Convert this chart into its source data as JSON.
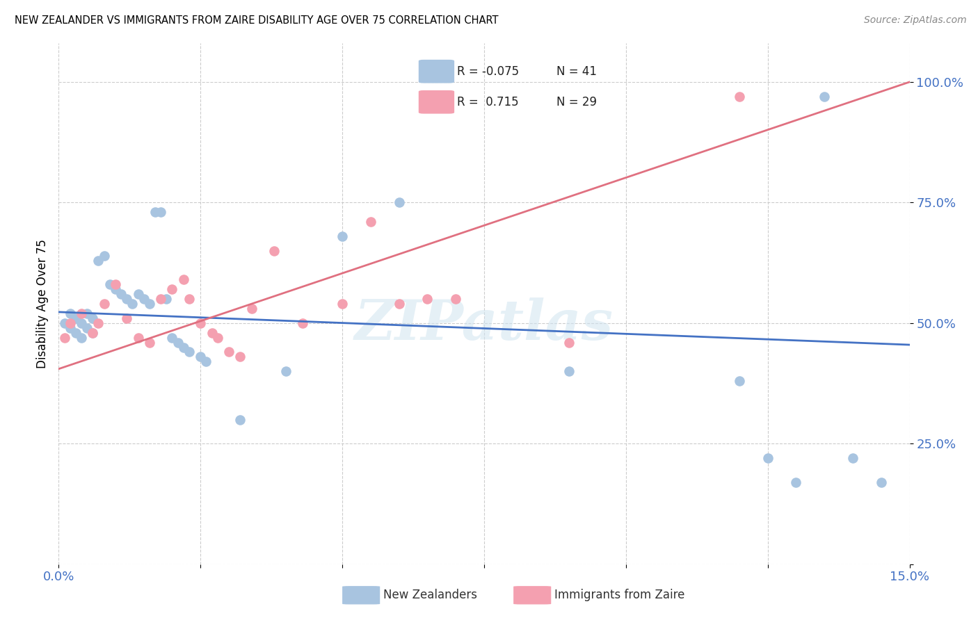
{
  "title": "NEW ZEALANDER VS IMMIGRANTS FROM ZAIRE DISABILITY AGE OVER 75 CORRELATION CHART",
  "source": "Source: ZipAtlas.com",
  "ylabel": "Disability Age Over 75",
  "xmin": 0.0,
  "xmax": 0.15,
  "ymin": 0.0,
  "ymax": 1.08,
  "ytick_values": [
    0.0,
    0.25,
    0.5,
    0.75,
    1.0
  ],
  "ytick_labels": [
    "",
    "25.0%",
    "50.0%",
    "75.0%",
    "100.0%"
  ],
  "xtick_values": [
    0.0,
    0.025,
    0.05,
    0.075,
    0.1,
    0.125,
    0.15
  ],
  "xtick_labels": [
    "0.0%",
    "",
    "",
    "",
    "",
    "",
    "15.0%"
  ],
  "blue_R": -0.075,
  "blue_N": 41,
  "pink_R": 0.715,
  "pink_N": 29,
  "blue_color": "#a8c4e0",
  "pink_color": "#f4a0b0",
  "blue_line_color": "#4472c4",
  "pink_line_color": "#e07080",
  "watermark": "ZIPatlas",
  "legend_label_blue": "New Zealanders",
  "legend_label_pink": "Immigrants from Zaire",
  "blue_x": [
    0.001,
    0.002,
    0.002,
    0.003,
    0.003,
    0.004,
    0.004,
    0.005,
    0.005,
    0.006,
    0.006,
    0.007,
    0.008,
    0.009,
    0.01,
    0.011,
    0.012,
    0.013,
    0.014,
    0.015,
    0.016,
    0.017,
    0.018,
    0.019,
    0.02,
    0.021,
    0.022,
    0.023,
    0.025,
    0.026,
    0.032,
    0.04,
    0.05,
    0.06,
    0.09,
    0.12,
    0.125,
    0.13,
    0.135,
    0.14,
    0.145
  ],
  "blue_y": [
    0.5,
    0.52,
    0.49,
    0.51,
    0.48,
    0.5,
    0.47,
    0.52,
    0.49,
    0.51,
    0.48,
    0.63,
    0.64,
    0.58,
    0.57,
    0.56,
    0.55,
    0.54,
    0.56,
    0.55,
    0.54,
    0.73,
    0.73,
    0.55,
    0.47,
    0.46,
    0.45,
    0.44,
    0.43,
    0.42,
    0.3,
    0.4,
    0.68,
    0.75,
    0.4,
    0.38,
    0.22,
    0.17,
    0.97,
    0.22,
    0.17
  ],
  "pink_x": [
    0.001,
    0.002,
    0.004,
    0.006,
    0.007,
    0.008,
    0.01,
    0.012,
    0.014,
    0.016,
    0.018,
    0.02,
    0.022,
    0.023,
    0.025,
    0.027,
    0.028,
    0.03,
    0.032,
    0.034,
    0.038,
    0.043,
    0.05,
    0.055,
    0.06,
    0.065,
    0.07,
    0.09,
    0.12
  ],
  "pink_y": [
    0.47,
    0.5,
    0.52,
    0.48,
    0.5,
    0.54,
    0.58,
    0.51,
    0.47,
    0.46,
    0.55,
    0.57,
    0.59,
    0.55,
    0.5,
    0.48,
    0.47,
    0.44,
    0.43,
    0.53,
    0.65,
    0.5,
    0.54,
    0.71,
    0.54,
    0.55,
    0.55,
    0.46,
    0.97
  ],
  "blue_line_x": [
    0.0,
    0.15
  ],
  "blue_line_y": [
    0.523,
    0.455
  ],
  "pink_line_x": [
    0.0,
    0.15
  ],
  "pink_line_y": [
    0.405,
    1.0
  ]
}
